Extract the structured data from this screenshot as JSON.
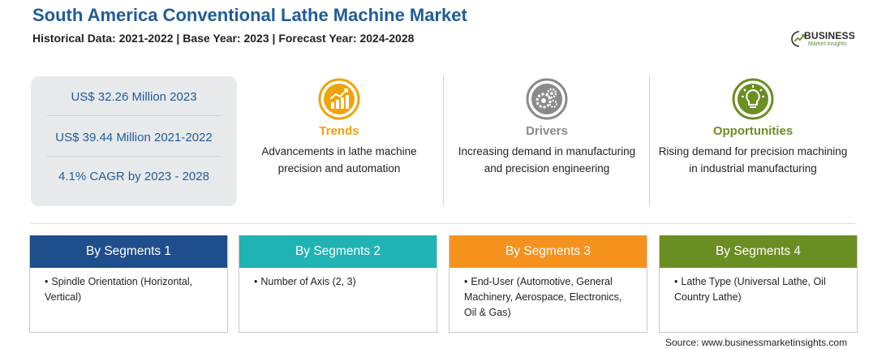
{
  "header": {
    "title": "South America Conventional Lathe Machine Market",
    "subtitle": "Historical Data: 2021-2022 | Base Year: 2023 | Forecast Year: 2024-2028"
  },
  "logo": {
    "word": "BUSINESS",
    "sub": "Market Insights"
  },
  "stats": [
    "US$ 32.26 Million 2023",
    "US$ 39.44 Million 2021-2022",
    "4.1% CAGR by 2023 - 2028"
  ],
  "features": [
    {
      "title": "Trends",
      "text": "Advancements in lathe machine precision and automation",
      "color": "#f0a30a",
      "icon": "chart-up-icon"
    },
    {
      "title": "Drivers",
      "text": "Increasing demand in manufacturing and precision engineering",
      "color": "#8a8a8a",
      "icon": "gears-icon"
    },
    {
      "title": "Opportunities",
      "text": "Rising demand for precision machining in industrial manufacturing",
      "color": "#6b8e23",
      "icon": "lightbulb-icon"
    }
  ],
  "segments": [
    {
      "title": "By Segments 1",
      "item": "Spindle Orientation (Horizontal, Vertical)",
      "color": "#1f4e8c"
    },
    {
      "title": "By Segments 2",
      "item": "Number of Axis (2, 3)",
      "color": "#1fb3b3"
    },
    {
      "title": "By Segments 3",
      "item": "End-User (Automotive, General Machinery, Aerospace, Electronics, Oil & Gas)",
      "color": "#f5921e"
    },
    {
      "title": "By Segments 4",
      "item": "Lathe Type (Universal Lathe, Oil Country Lathe)",
      "color": "#6b8e23"
    }
  ],
  "bullet": "•",
  "source": "Source: www.businessmarketinsights.com"
}
